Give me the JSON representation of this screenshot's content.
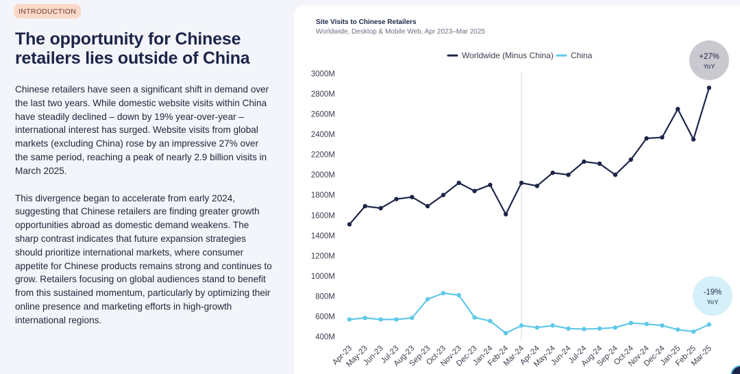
{
  "intro": {
    "badge": "INTRODUCTION",
    "headline_line1": "The opportunity for Chinese",
    "headline_line2": "retailers lies outside of China",
    "paragraph1": "Chinese retailers have seen a significant shift in demand over the last two years. While domestic website visits within China have steadily declined – down by 19% year-over-year – international interest has surged. Website visits from global markets (excluding China) rose by an impressive 27% over the same period, reaching a peak of nearly 2.9 billion visits in March 2025.",
    "paragraph2": "This divergence began to accelerate from early 2024, suggesting that Chinese retailers are finding greater growth opportunities abroad as domestic demand weakens. The sharp contrast indicates that future expansion strategies should prioritize international markets, where consumer appetite for Chinese products remains strong and continues to grow. Retailers focusing on global audiences stand to benefit from this sustained momentum, particularly by optimizing their online presence and marketing efforts in high-growth international regions."
  },
  "chart_data": {
    "type": "line",
    "title": "Site Visits to Chinese Retailers",
    "subtitle": "Worldwide, Desktop & Mobile Web, Apr 2023–Mar 2025",
    "legend_position": "top-center",
    "grid": false,
    "ylim": [
      400,
      3000
    ],
    "y_ticks": [
      "3000M",
      "2800M",
      "2600M",
      "2400M",
      "2200M",
      "2000M",
      "1800M",
      "1600M",
      "1400M",
      "1200M",
      "1000M",
      "800M",
      "600M",
      "400M"
    ],
    "y_tick_values": [
      3000,
      2800,
      2600,
      2400,
      2200,
      2000,
      1800,
      1600,
      1400,
      1200,
      1000,
      800,
      600,
      400
    ],
    "categories": [
      "Apr-23",
      "May-23",
      "Jun-23",
      "Jul-23",
      "Aug-23",
      "Sep-23",
      "Oct-23",
      "Nov-23",
      "Dec-23",
      "Jan-24",
      "Feb-24",
      "Mar-24",
      "Apr-24",
      "May-24",
      "Jun-24",
      "Jul-24",
      "Aug-24",
      "Sep-24",
      "Oct-24",
      "Nov-24",
      "Dec-24",
      "Jan-25",
      "Feb-25",
      "Mar-25"
    ],
    "reference_line_at": "Mar-24",
    "series": [
      {
        "name": "Worldwide (Minus China)",
        "color": "#1e2549",
        "values": [
          1510,
          1690,
          1670,
          1760,
          1780,
          1690,
          1800,
          1920,
          1840,
          1900,
          1610,
          1920,
          1890,
          2020,
          2000,
          2130,
          2110,
          2000,
          2150,
          2360,
          2370,
          2650,
          2350,
          2860
        ],
        "badge_value": "+27%",
        "badge_label": "YoY",
        "badge_color": "#c9c9cf"
      },
      {
        "name": "China",
        "color": "#5ec8e8",
        "values": [
          570,
          585,
          570,
          570,
          585,
          770,
          830,
          810,
          590,
          555,
          435,
          510,
          490,
          510,
          480,
          475,
          480,
          490,
          535,
          525,
          510,
          470,
          450,
          520
        ],
        "badge_value": "-19%",
        "badge_label": "YoY",
        "badge_color": "#d6f0f9"
      }
    ]
  }
}
